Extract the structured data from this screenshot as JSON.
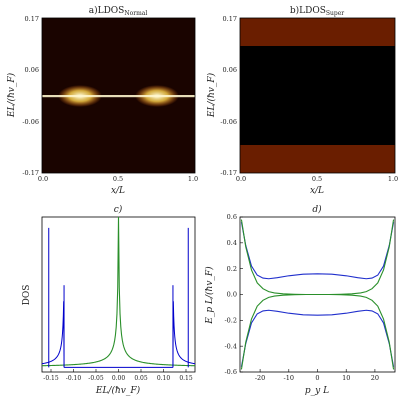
{
  "colors": {
    "heat_dark": "#000000",
    "heat_mid": "#b84100",
    "heat_bright": "#ffffe0",
    "dos_curve": "#0000cc",
    "dos_normal": "#2a8f2a",
    "band_super": "#1f2ecc",
    "band_normal": "#2a8f2a"
  },
  "chart_data": [
    {
      "type": "heatmap",
      "title_prefix": "a)",
      "title_main": "LDOS",
      "title_sub": "Normal",
      "xlabel": "x/L",
      "ylabel": "EL/(ħv_F)",
      "xlim": [
        0.0,
        1.0
      ],
      "ylim": [
        -0.17,
        0.17
      ],
      "xtick_labels": [
        "0.0",
        "0.5",
        "1.0"
      ],
      "ytick_labels": [
        "0.17",
        "0.06",
        "-0.06",
        "-0.17"
      ],
      "bright_x": [
        0.25,
        0.75
      ],
      "bright_y": 0.0,
      "colormap": "afmhot"
    },
    {
      "type": "heatmap",
      "title_prefix": "b)",
      "title_main": "LDOS",
      "title_sub": "Super",
      "xlabel": "x/L",
      "ylabel": "EL/(ħv_F)",
      "xlim": [
        0.0,
        1.0
      ],
      "ylim": [
        -0.17,
        0.17
      ],
      "xtick_labels": [
        "0.0",
        "0.5",
        "1.0"
      ],
      "ytick_labels": [
        "0.17",
        "0.06",
        "-0.06",
        "-0.17"
      ],
      "gap_edge": 0.12,
      "bright_x": [
        0.25,
        0.75
      ],
      "colormap": "afmhot"
    },
    {
      "type": "line",
      "title": "c)",
      "xlabel": "EL/(ħv_F)",
      "ylabel": "DOS",
      "xlim": [
        -0.17,
        0.17
      ],
      "xtick_labels": [
        "-0.15",
        "-0.10",
        "-0.05",
        "0.00",
        "0.05",
        "0.10",
        "0.15"
      ],
      "xtick_values": [
        -0.15,
        -0.1,
        -0.05,
        0.0,
        0.05,
        0.1,
        0.15
      ],
      "series": [
        {
          "color": "#0000cc",
          "gap_edge": 0.121,
          "spikes": [
            {
              "x": -0.155,
              "height": 0.93
            },
            {
              "x": -0.121,
              "height": 0.56
            },
            {
              "x": 0.121,
              "height": 0.56
            },
            {
              "x": 0.155,
              "height": 0.93
            }
          ]
        },
        {
          "color": "#2a8f2a",
          "peak_x": 0.0
        }
      ]
    },
    {
      "type": "line",
      "title": "d)",
      "xlabel": "p_y L",
      "ylabel": "E_p L/(ħv_F)",
      "xlim": [
        -27,
        27
      ],
      "ylim": [
        -0.6,
        0.6
      ],
      "xtick_labels": [
        "-20",
        "-10",
        "0",
        "10",
        "20"
      ],
      "xtick_values": [
        -20,
        -10,
        0,
        10,
        20
      ],
      "ytick_labels": [
        "0.6",
        "0.4",
        "0.2",
        "0.0",
        "-0.2",
        "-0.4",
        "-0.6"
      ],
      "ytick_values": [
        0.6,
        0.4,
        0.2,
        0.0,
        -0.2,
        -0.4,
        -0.6
      ],
      "series": [
        {
          "color": "#1f2ecc",
          "x": [
            -26.5,
            -25,
            -23,
            -21,
            -19,
            -17,
            -14,
            -10,
            -5,
            0,
            5,
            10,
            14,
            17,
            19,
            21,
            23,
            25,
            26.5
          ],
          "y": [
            0.56,
            0.38,
            0.22,
            0.15,
            0.127,
            0.122,
            0.13,
            0.145,
            0.157,
            0.16,
            0.157,
            0.145,
            0.13,
            0.122,
            0.127,
            0.15,
            0.22,
            0.38,
            0.56
          ]
        },
        {
          "color": "#1f2ecc",
          "x": [
            -26.5,
            -25,
            -23,
            -21,
            -19,
            -17,
            -14,
            -10,
            -5,
            0,
            5,
            10,
            14,
            17,
            19,
            21,
            23,
            25,
            26.5
          ],
          "y": [
            -0.56,
            -0.38,
            -0.22,
            -0.15,
            -0.127,
            -0.122,
            -0.13,
            -0.145,
            -0.157,
            -0.16,
            -0.157,
            -0.145,
            -0.13,
            -0.122,
            -0.127,
            -0.15,
            -0.22,
            -0.38,
            -0.56
          ]
        },
        {
          "color": "#2a8f2a",
          "x": [
            -26.5,
            -25,
            -23,
            -21,
            -19,
            -17,
            -15,
            -12,
            -8,
            -4,
            0,
            4,
            8,
            12,
            15,
            17,
            19,
            21,
            23,
            25,
            26.5
          ],
          "y": [
            0.58,
            0.37,
            0.19,
            0.09,
            0.045,
            0.022,
            0.012,
            0.005,
            0.002,
            0.0,
            0.0,
            0.0,
            0.002,
            0.005,
            0.012,
            0.022,
            0.045,
            0.09,
            0.19,
            0.37,
            0.58
          ]
        },
        {
          "color": "#2a8f2a",
          "x": [
            -26.5,
            -25,
            -23,
            -21,
            -19,
            -17,
            -15,
            -12,
            -8,
            -4,
            0,
            4,
            8,
            12,
            15,
            17,
            19,
            21,
            23,
            25,
            26.5
          ],
          "y": [
            -0.58,
            -0.37,
            -0.19,
            -0.09,
            -0.045,
            -0.022,
            -0.012,
            -0.005,
            -0.002,
            0.0,
            0.0,
            0.0,
            -0.002,
            -0.005,
            -0.012,
            -0.022,
            -0.045,
            -0.09,
            -0.19,
            -0.37,
            -0.58
          ]
        }
      ]
    }
  ]
}
